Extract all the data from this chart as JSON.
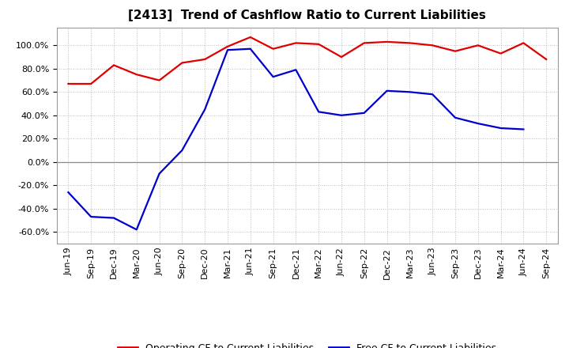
{
  "title": "[2413]  Trend of Cashflow Ratio to Current Liabilities",
  "x_labels": [
    "Jun-19",
    "Sep-19",
    "Dec-19",
    "Mar-20",
    "Jun-20",
    "Sep-20",
    "Dec-20",
    "Mar-21",
    "Jun-21",
    "Sep-21",
    "Dec-21",
    "Mar-22",
    "Jun-22",
    "Sep-22",
    "Dec-22",
    "Mar-23",
    "Jun-23",
    "Sep-23",
    "Dec-23",
    "Mar-24",
    "Jun-24",
    "Sep-24"
  ],
  "operating_cf": [
    0.67,
    0.67,
    0.83,
    0.75,
    0.7,
    0.85,
    0.88,
    0.99,
    1.07,
    0.97,
    1.02,
    1.01,
    0.9,
    1.02,
    1.03,
    1.02,
    1.0,
    0.95,
    1.0,
    0.93,
    1.02,
    0.88
  ],
  "free_cf": [
    -0.26,
    -0.47,
    -0.48,
    -0.58,
    -0.1,
    0.1,
    0.45,
    0.96,
    0.97,
    0.73,
    0.79,
    0.43,
    0.4,
    0.42,
    0.61,
    0.6,
    0.58,
    0.38,
    0.33,
    0.29,
    0.28,
    null
  ],
  "ylim": [
    -0.7,
    1.15
  ],
  "yticks": [
    -0.6,
    -0.4,
    -0.2,
    0.0,
    0.2,
    0.4,
    0.6,
    0.8,
    1.0
  ],
  "operating_color": "#e00000",
  "free_color": "#0000cc",
  "legend_op": "Operating CF to Current Liabilities",
  "legend_free": "Free CF to Current Liabilities",
  "background_color": "#ffffff",
  "plot_bg_color": "#ffffff",
  "grid_color": "#bbbbbb",
  "zero_line_color": "#888888",
  "title_fontsize": 11,
  "tick_fontsize": 8,
  "legend_fontsize": 9
}
